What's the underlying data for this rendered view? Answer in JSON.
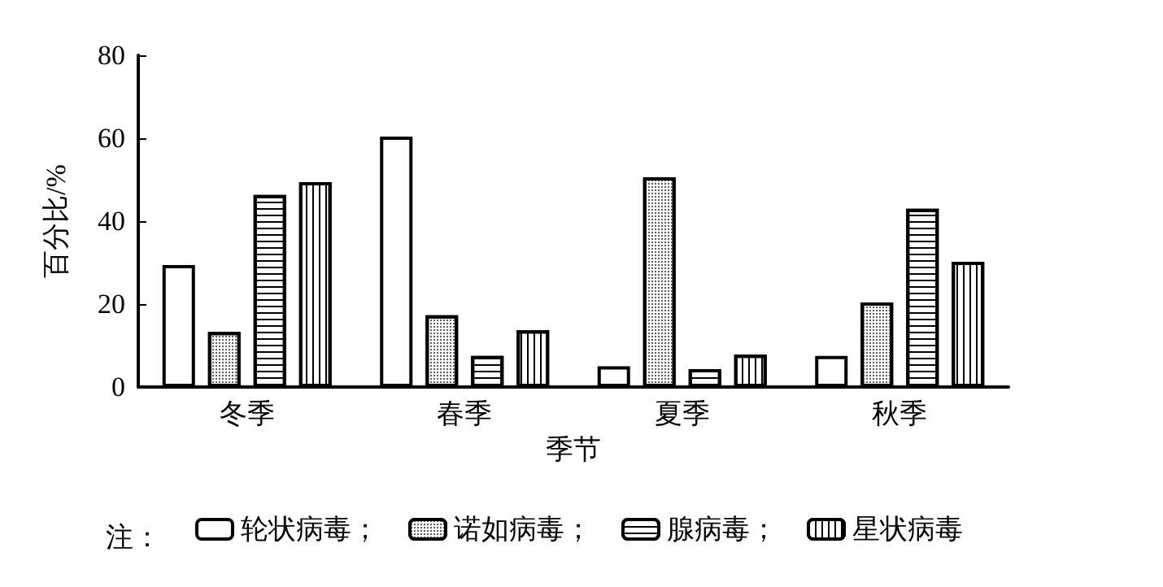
{
  "chart_data": {
    "type": "bar",
    "xlabel": "季节",
    "ylabel": "百分比/%",
    "legend_title": "注：",
    "categories": [
      "冬季",
      "春季",
      "夏季",
      "秋季"
    ],
    "series": [
      {
        "name": "轮状病毒；",
        "color": "#ffffff",
        "values": [
          29.4,
          60.4,
          5,
          7.5
        ]
      },
      {
        "name": "诺如病毒；",
        "color": "#ffffff",
        "values": [
          13.3,
          17.3,
          50.6,
          20.4
        ]
      },
      {
        "name": "腺病毒；",
        "color": "#ffffff",
        "values": [
          46.3,
          7.5,
          4.3,
          43
        ]
      },
      {
        "name": "星状病毒",
        "color": "#ffffff",
        "values": [
          49.4,
          13.7,
          7.8,
          30.2
        ]
      }
    ],
    "ylim": [
      0,
      80
    ],
    "yticks": [
      0,
      20,
      40,
      60,
      80
    ],
    "grid": false,
    "legend": "bottom"
  }
}
